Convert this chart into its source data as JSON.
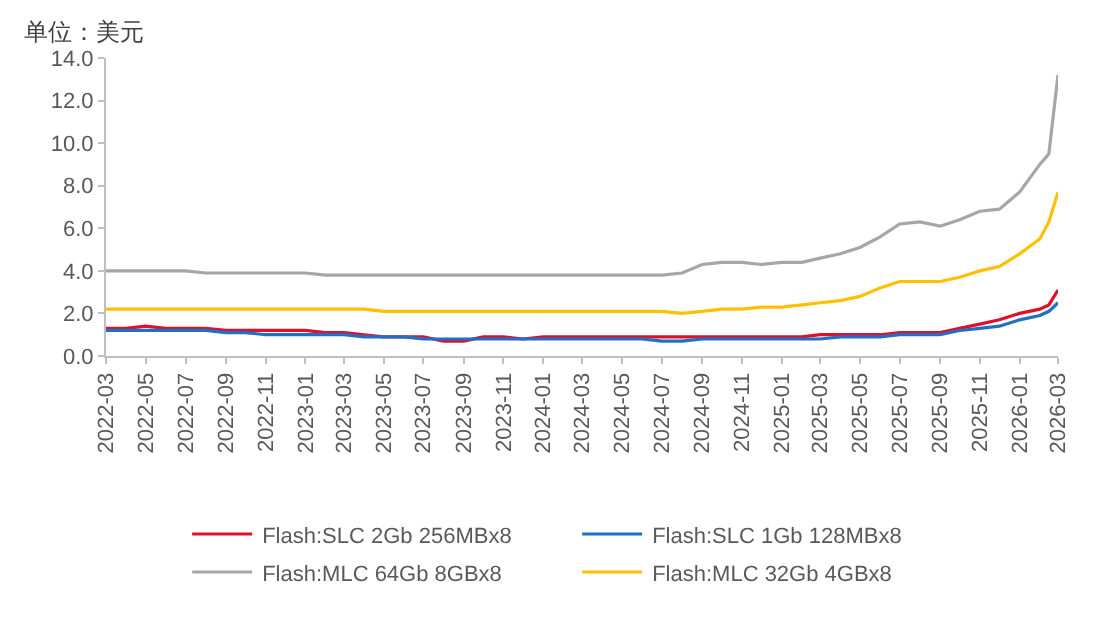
{
  "chart_data": {
    "type": "line",
    "ylabel": "单位：美元",
    "legend": "bottom",
    "x": [
      "2022-03",
      "2022-04",
      "2022-05",
      "2022-06",
      "2022-07",
      "2022-08",
      "2022-09",
      "2022-10",
      "2022-11",
      "2022-12",
      "2023-01",
      "2023-02",
      "2023-03",
      "2023-04",
      "2023-05",
      "2023-06",
      "2023-07",
      "2023-08",
      "2023-09",
      "2023-10",
      "2023-11",
      "2023-12",
      "2024-01",
      "2024-02",
      "2024-03",
      "2024-04",
      "2024-05",
      "2024-06",
      "2024-07",
      "2024-08",
      "2024-09",
      "2024-10",
      "2024-11",
      "2024-12",
      "2025-01",
      "2025-02",
      "2025-03",
      "2025-04",
      "2025-05",
      "2025-06",
      "2025-07",
      "2025-08",
      "2025-09",
      "2025-10",
      "2025-11",
      "2025-12",
      "2026-01",
      "2026-02",
      "2026-02-15",
      "2026-03"
    ],
    "series": [
      {
        "name": "Flash:SLC 2Gb 256MBx8",
        "color": "#e0102a",
        "values": [
          1.3,
          1.3,
          1.4,
          1.3,
          1.3,
          1.3,
          1.2,
          1.2,
          1.2,
          1.2,
          1.2,
          1.1,
          1.1,
          1.0,
          0.9,
          0.9,
          0.9,
          0.7,
          0.7,
          0.9,
          0.9,
          0.8,
          0.9,
          0.9,
          0.9,
          0.9,
          0.9,
          0.9,
          0.9,
          0.9,
          0.9,
          0.9,
          0.9,
          0.9,
          0.9,
          0.9,
          1.0,
          1.0,
          1.0,
          1.0,
          1.1,
          1.1,
          1.1,
          1.3,
          1.5,
          1.7,
          2.0,
          2.2,
          2.4,
          3.1
        ]
      },
      {
        "name": "Flash:SLC 1Gb 128MBx8",
        "color": "#1f6fc5",
        "values": [
          1.2,
          1.2,
          1.2,
          1.2,
          1.2,
          1.2,
          1.1,
          1.1,
          1.0,
          1.0,
          1.0,
          1.0,
          1.0,
          0.9,
          0.9,
          0.9,
          0.8,
          0.8,
          0.8,
          0.8,
          0.8,
          0.8,
          0.8,
          0.8,
          0.8,
          0.8,
          0.8,
          0.8,
          0.7,
          0.7,
          0.8,
          0.8,
          0.8,
          0.8,
          0.8,
          0.8,
          0.8,
          0.9,
          0.9,
          0.9,
          1.0,
          1.0,
          1.0,
          1.2,
          1.3,
          1.4,
          1.7,
          1.9,
          2.1,
          2.5
        ]
      },
      {
        "name": "Flash:MLC 64Gb 8GBx8",
        "color": "#a6a6a6",
        "values": [
          4.0,
          4.0,
          4.0,
          4.0,
          4.0,
          3.9,
          3.9,
          3.9,
          3.9,
          3.9,
          3.9,
          3.8,
          3.8,
          3.8,
          3.8,
          3.8,
          3.8,
          3.8,
          3.8,
          3.8,
          3.8,
          3.8,
          3.8,
          3.8,
          3.8,
          3.8,
          3.8,
          3.8,
          3.8,
          3.9,
          4.3,
          4.4,
          4.4,
          4.3,
          4.4,
          4.4,
          4.6,
          4.8,
          5.1,
          5.6,
          6.2,
          6.3,
          6.1,
          6.4,
          6.8,
          6.9,
          7.7,
          9.0,
          9.5,
          13.2
        ]
      },
      {
        "name": "Flash:MLC 32Gb 4GBx8",
        "color": "#ffc000",
        "values": [
          2.2,
          2.2,
          2.2,
          2.2,
          2.2,
          2.2,
          2.2,
          2.2,
          2.2,
          2.2,
          2.2,
          2.2,
          2.2,
          2.2,
          2.1,
          2.1,
          2.1,
          2.1,
          2.1,
          2.1,
          2.1,
          2.1,
          2.1,
          2.1,
          2.1,
          2.1,
          2.1,
          2.1,
          2.1,
          2.0,
          2.1,
          2.2,
          2.2,
          2.3,
          2.3,
          2.4,
          2.5,
          2.6,
          2.8,
          3.2,
          3.5,
          3.5,
          3.5,
          3.7,
          4.0,
          4.2,
          4.8,
          5.5,
          6.3,
          7.7
        ]
      }
    ],
    "xlim": [
      "2022-03",
      "2026-03"
    ],
    "xticks": [
      "2022-03",
      "2022-05",
      "2022-07",
      "2022-09",
      "2022-11",
      "2023-01",
      "2023-03",
      "2023-05",
      "2023-07",
      "2023-09",
      "2023-11",
      "2024-01",
      "2024-03",
      "2024-05",
      "2024-07",
      "2024-09",
      "2024-11",
      "2025-01",
      "2025-03",
      "2025-05",
      "2025-07",
      "2025-09",
      "2025-11",
      "2026-01",
      "2026-03"
    ],
    "ylim": [
      0,
      14
    ],
    "yticks": [
      {
        "value": 0,
        "label": "0.0"
      },
      {
        "value": 2,
        "label": "2.0"
      },
      {
        "value": 4,
        "label": "4.0"
      },
      {
        "value": 6,
        "label": "6.0"
      },
      {
        "value": 8,
        "label": "8.0"
      },
      {
        "value": 10,
        "label": "10.0"
      },
      {
        "value": 12,
        "label": "12.0"
      },
      {
        "value": 14,
        "label": "14.0"
      }
    ],
    "line_style": "solid"
  }
}
